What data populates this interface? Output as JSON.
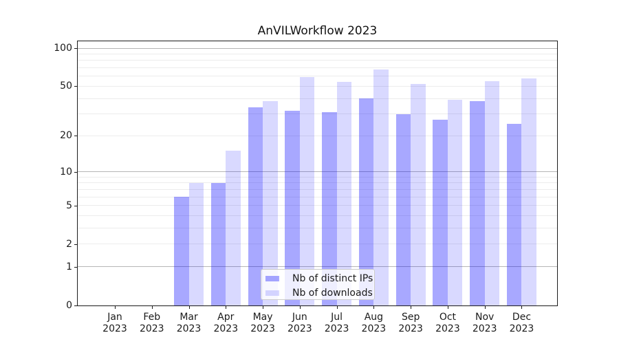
{
  "figure": {
    "title": "AnVILWorkflow 2023",
    "background": "#ffffff"
  },
  "chart_data": {
    "type": "bar",
    "title": "AnVILWorkflow 2023",
    "categories": [
      "Jan",
      "Feb",
      "Mar",
      "Apr",
      "May",
      "Jun",
      "Jul",
      "Aug",
      "Sep",
      "Oct",
      "Nov",
      "Dec"
    ],
    "x_year": "2023",
    "series": [
      {
        "name": "Nb of distinct IPs",
        "color_hex_on_white": "#a8a8fa",
        "color_rgba": "rgba(0,0,255,0.34)",
        "values": [
          0,
          0,
          6,
          8,
          34,
          32,
          31,
          40,
          30,
          27,
          38,
          25
        ]
      },
      {
        "name": "Nb of downloads",
        "color_hex_on_white": "#d9d9f8",
        "color_rgba": "rgba(0,0,255,0.15)",
        "values": [
          0,
          0,
          8,
          15,
          38,
          59,
          54,
          68,
          52,
          39,
          55,
          58
        ]
      }
    ],
    "xlabel": "",
    "ylabel": "",
    "yscale": "log1p",
    "ylim": [
      0,
      114
    ],
    "yticks_labeled": [
      0,
      1,
      2,
      5,
      10,
      20,
      50,
      100
    ],
    "ygrid_major": [
      1,
      10,
      100
    ],
    "ygrid_minor": [
      2,
      3,
      4,
      5,
      6,
      7,
      8,
      9,
      20,
      30,
      40,
      50,
      60,
      70,
      80,
      90
    ],
    "grid_color_major": "#b5b5b5",
    "grid_color_minor": "#ececec",
    "legend_position": "lower center",
    "legend_items": [
      "Nb of distinct IPs",
      "Nb of downloads"
    ]
  }
}
